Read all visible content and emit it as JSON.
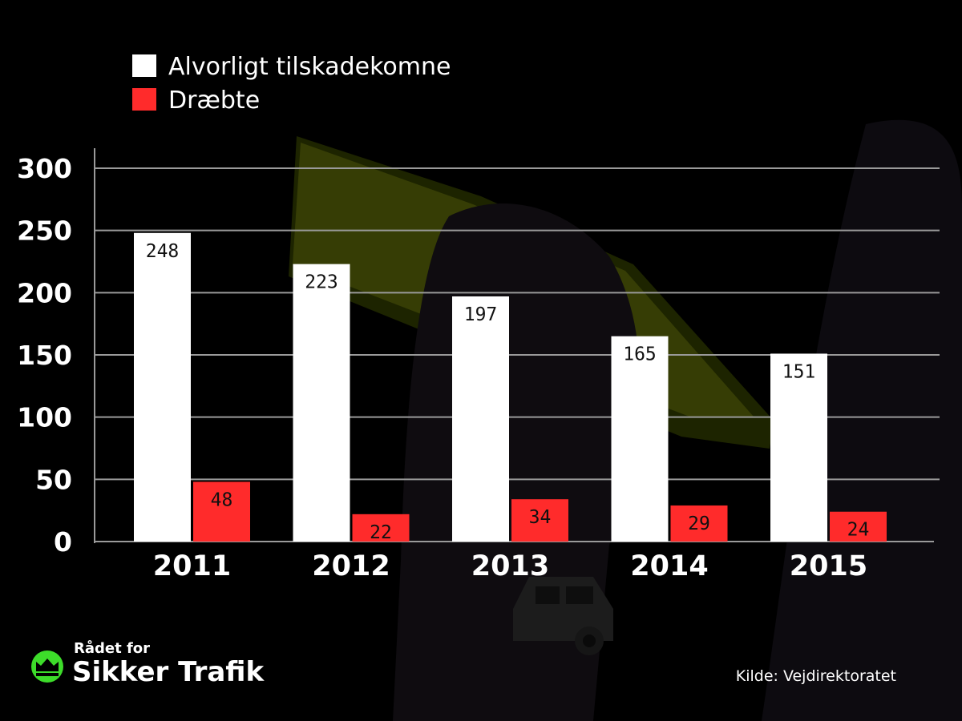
{
  "chart_data": {
    "type": "bar",
    "categories": [
      "2011",
      "2012",
      "2013",
      "2014",
      "2015"
    ],
    "series": [
      {
        "name": "Alvorligt tilskadekomne",
        "values": [
          248,
          223,
          197,
          165,
          151
        ]
      },
      {
        "name": "Dræbte",
        "values": [
          48,
          22,
          34,
          29,
          24
        ]
      }
    ],
    "ylim": [
      0,
      300
    ],
    "yticks": [
      0,
      50,
      100,
      150,
      200,
      250,
      300
    ],
    "grid": true,
    "legend_position": "top-left"
  },
  "colors": {
    "series_1": "#ffffff",
    "series_2": "#ff2b2b",
    "background": "#000000",
    "grid": "#9a9a9a",
    "brand_accent": "#3ddc2a"
  },
  "branding": {
    "line1": "Rådet for",
    "line2": "Sikker Trafik",
    "icon": "crown-icon"
  },
  "source": "Kilde: Vejdirektoratet"
}
